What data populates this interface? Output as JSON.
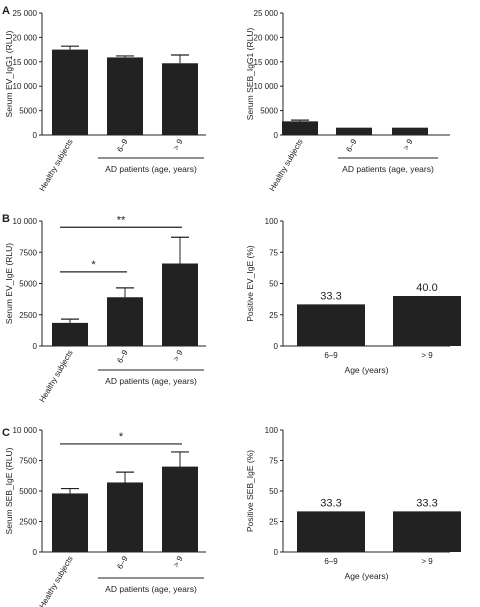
{
  "panel_labels": [
    "A",
    "B",
    "C"
  ],
  "chart_data": [
    {
      "type": "bar",
      "panel": "A",
      "categories": [
        "Healthy subjects",
        "6–9",
        "> 9"
      ],
      "values": [
        17500,
        15900,
        14700
      ],
      "errors": [
        700,
        300,
        1700
      ],
      "ylabel": "Serum EV_IgG1 (RLU)",
      "ylim": [
        0,
        25000
      ],
      "yticks": [
        "0",
        "5000",
        "10 000",
        "15 000",
        "20 000",
        "25 000"
      ],
      "group_label": "AD patients (age, years)",
      "significance": []
    },
    {
      "type": "bar",
      "panel": "A-right",
      "categories": [
        "Healthy subjects",
        "6–9",
        "> 9"
      ],
      "values": [
        2800,
        1500,
        1500
      ],
      "errors": [
        250,
        0,
        0
      ],
      "ylabel": "Serum SEB_IgG1 (RLU)",
      "ylim": [
        0,
        25000
      ],
      "yticks": [
        "0",
        "5000",
        "10 000",
        "15 000",
        "20 000",
        "25 000"
      ],
      "group_label": "AD patients (age, years)",
      "significance": []
    },
    {
      "type": "bar",
      "panel": "B",
      "categories": [
        "Healthy subjects",
        "6–9",
        "> 9"
      ],
      "values": [
        1850,
        3900,
        6600
      ],
      "errors": [
        300,
        750,
        2100
      ],
      "ylabel": "Serum EV_IgE (RLU)",
      "ylim": [
        0,
        10000
      ],
      "yticks": [
        "0",
        "2500",
        "5000",
        "7500",
        "10 000"
      ],
      "group_label": "AD patients (age, years)",
      "significance": [
        {
          "from": 0,
          "to": 1,
          "label": "*"
        },
        {
          "from": 0,
          "to": 2,
          "label": "**"
        }
      ]
    },
    {
      "type": "bar",
      "panel": "B-right",
      "categories": [
        "6–9",
        "> 9"
      ],
      "values": [
        33.3,
        40.0
      ],
      "data_labels": [
        "33.3",
        "40.0"
      ],
      "ylabel": "Positive EV_IgE (%)",
      "ylim": [
        0,
        100
      ],
      "yticks": [
        "0",
        "25",
        "50",
        "75",
        "100"
      ],
      "xlabel": "Age (years)"
    },
    {
      "type": "bar",
      "panel": "C",
      "categories": [
        "Healthy subjects",
        "6–9",
        "> 9"
      ],
      "values": [
        4800,
        5700,
        7000
      ],
      "errors": [
        400,
        850,
        1200
      ],
      "ylabel": "Serum SEB_IgE (RLU)",
      "ylim": [
        0,
        10000
      ],
      "yticks": [
        "0",
        "2500",
        "5000",
        "7500",
        "10 000"
      ],
      "group_label": "AD patients (age, years)",
      "significance": [
        {
          "from": 0,
          "to": 2,
          "label": "*"
        }
      ]
    },
    {
      "type": "bar",
      "panel": "C-right",
      "categories": [
        "6–9",
        "> 9"
      ],
      "values": [
        33.3,
        33.3
      ],
      "data_labels": [
        "33.3",
        "33.3"
      ],
      "ylabel": "Positive SEB_IgE (%)",
      "ylim": [
        0,
        100
      ],
      "yticks": [
        "0",
        "25",
        "50",
        "75",
        "100"
      ],
      "xlabel": "Age (years)"
    }
  ]
}
